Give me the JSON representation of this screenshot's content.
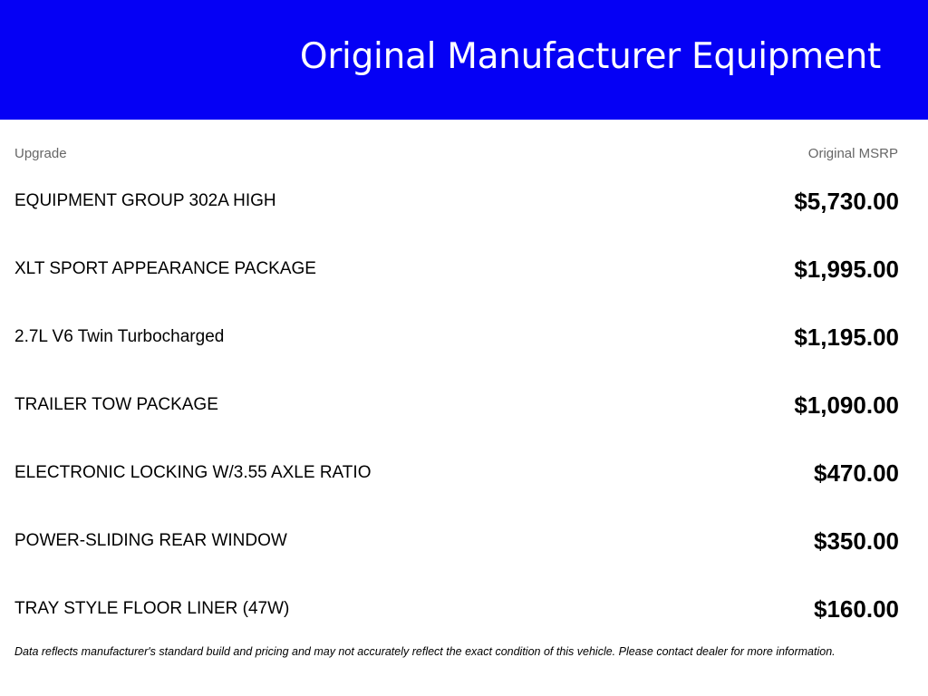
{
  "header": {
    "title": "Original Manufacturer Equipment"
  },
  "columns": {
    "upgrade": "Upgrade",
    "msrp": "Original MSRP"
  },
  "items": [
    {
      "name": "EQUIPMENT GROUP 302A HIGH",
      "price": "$5,730.00"
    },
    {
      "name": "XLT SPORT APPEARANCE PACKAGE",
      "price": "$1,995.00"
    },
    {
      "name": "2.7L V6 Twin Turbocharged",
      "price": "$1,195.00"
    },
    {
      "name": "TRAILER TOW PACKAGE",
      "price": "$1,090.00"
    },
    {
      "name": "ELECTRONIC LOCKING W/3.55 AXLE RATIO",
      "price": "$470.00"
    },
    {
      "name": "POWER-SLIDING REAR WINDOW",
      "price": "$350.00"
    },
    {
      "name": "TRAY STYLE FLOOR LINER (47W)",
      "price": "$160.00"
    }
  ],
  "footer": {
    "disclaimer": "Data reflects manufacturer's standard build and pricing and may not accurately reflect the exact condition of this vehicle. Please contact dealer for more information."
  },
  "colors": {
    "header_bg": "#0500f5"
  }
}
